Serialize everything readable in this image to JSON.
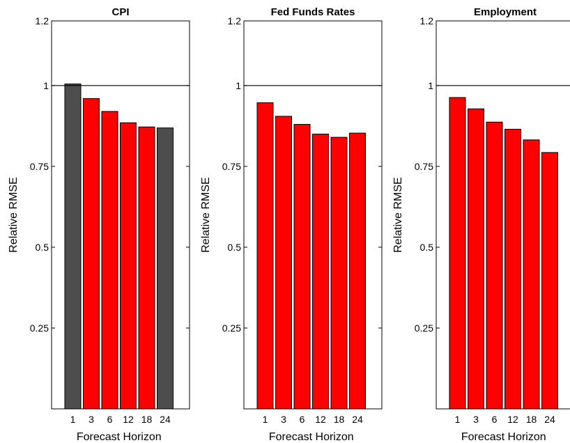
{
  "chart_data": [
    {
      "type": "bar",
      "title": "CPI",
      "xlabel": "Forecast Horizon",
      "ylabel": "Relative RMSE",
      "categories": [
        "1",
        "3",
        "6",
        "12",
        "18",
        "24"
      ],
      "values": [
        1.005,
        0.96,
        0.92,
        0.885,
        0.872,
        0.869
      ],
      "bar_colors": [
        "#4d4d4d",
        "#ff0000",
        "#ff0000",
        "#ff0000",
        "#ff0000",
        "#4d4d4d"
      ],
      "ylim": [
        0,
        1.2
      ],
      "yticks": [
        0.25,
        0.5,
        0.75,
        1,
        1.2
      ],
      "ytick_labels": [
        "0.25",
        "0.5",
        "0.75",
        "1",
        "1.2"
      ],
      "reference_line": 1
    },
    {
      "type": "bar",
      "title": "Fed Funds Rates",
      "xlabel": "Forecast Horizon",
      "ylabel": "Relative RMSE",
      "categories": [
        "1",
        "3",
        "6",
        "12",
        "18",
        "24"
      ],
      "values": [
        0.947,
        0.905,
        0.88,
        0.85,
        0.84,
        0.853
      ],
      "bar_colors": [
        "#ff0000",
        "#ff0000",
        "#ff0000",
        "#ff0000",
        "#ff0000",
        "#ff0000"
      ],
      "ylim": [
        0,
        1.2
      ],
      "yticks": [
        0.25,
        0.5,
        0.75,
        1,
        1.2
      ],
      "ytick_labels": [
        "0.25",
        "0.5",
        "0.75",
        "1",
        "1.2"
      ],
      "reference_line": 1
    },
    {
      "type": "bar",
      "title": "Employment",
      "xlabel": "Forecast Horizon",
      "ylabel": "Relative RMSE",
      "categories": [
        "1",
        "3",
        "6",
        "12",
        "18",
        "24"
      ],
      "values": [
        0.963,
        0.928,
        0.887,
        0.865,
        0.832,
        0.793
      ],
      "bar_colors": [
        "#ff0000",
        "#ff0000",
        "#ff0000",
        "#ff0000",
        "#ff0000",
        "#ff0000"
      ],
      "ylim": [
        0,
        1.2
      ],
      "yticks": [
        0.25,
        0.5,
        0.75,
        1,
        1.2
      ],
      "ytick_labels": [
        "0.25",
        "0.5",
        "0.75",
        "1",
        "1.2"
      ],
      "reference_line": 1
    }
  ]
}
